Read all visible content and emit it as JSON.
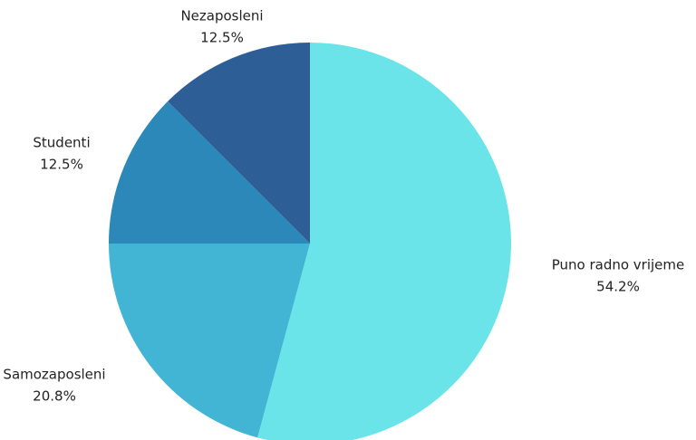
{
  "chart_data": {
    "type": "pie",
    "categories": [
      "Puno radno vrijeme",
      "Samozaposleni",
      "Studenti",
      "Nezaposleni"
    ],
    "values": [
      54.2,
      20.8,
      12.5,
      12.5
    ],
    "value_labels": [
      "54.2%",
      "20.8%",
      "12.5%",
      "12.5%"
    ],
    "colors": [
      "#6ae4e8",
      "#42b4d4",
      "#2b88b8",
      "#2d5f96"
    ]
  }
}
